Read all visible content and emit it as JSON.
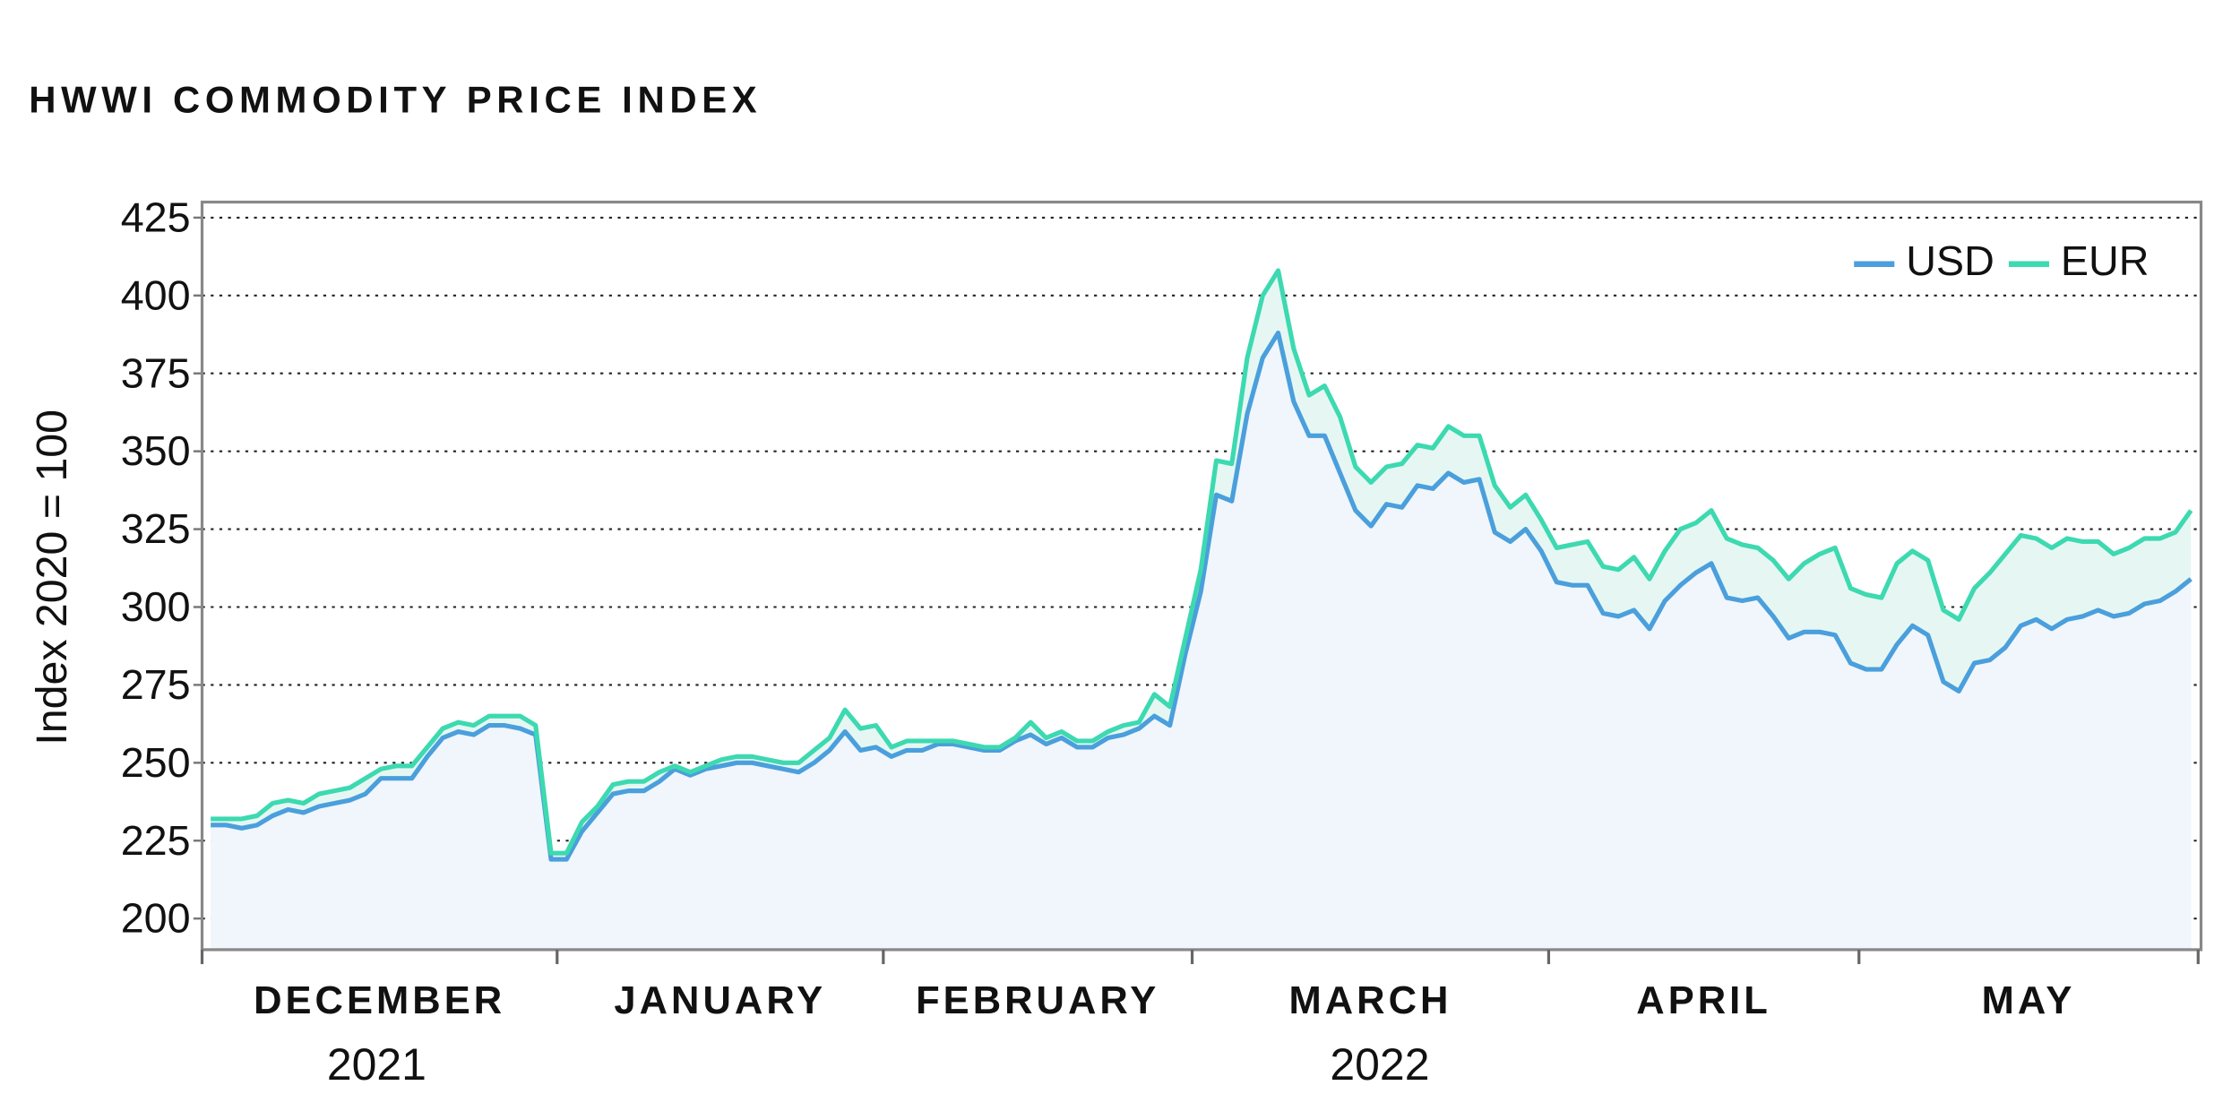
{
  "chart_data": {
    "type": "line",
    "title": "HWWI COMMODITY PRICE INDEX",
    "y_label": "Index 2020 = 100",
    "months": [
      "DECEMBER",
      "JANUARY",
      "FEBRUARY",
      "MARCH",
      "APRIL",
      "MAY"
    ],
    "years": [
      "2021",
      "2022"
    ],
    "ylim": [
      190,
      430
    ],
    "yticks": [
      200,
      225,
      250,
      275,
      300,
      325,
      350,
      375,
      400,
      425
    ],
    "grid": true,
    "legend": "upper right",
    "series": [
      {
        "name": "USD",
        "color": "#4a9fdc",
        "values": [
          230,
          230,
          229,
          230,
          233,
          235,
          234,
          236,
          237,
          238,
          240,
          245,
          245,
          245,
          252,
          258,
          260,
          259,
          262,
          262,
          261,
          259,
          219,
          219,
          228,
          234,
          240,
          241,
          241,
          244,
          248,
          246,
          248,
          249,
          250,
          250,
          249,
          248,
          247,
          250,
          254,
          260,
          254,
          255,
          252,
          254,
          254,
          256,
          256,
          255,
          254,
          254,
          257,
          259,
          256,
          258,
          255,
          255,
          258,
          259,
          261,
          265,
          262,
          285,
          305,
          336,
          334,
          362,
          380,
          388,
          366,
          355,
          355,
          343,
          331,
          326,
          333,
          332,
          339,
          338,
          343,
          340,
          341,
          324,
          321,
          325,
          318,
          308,
          307,
          307,
          298,
          297,
          299,
          293,
          302,
          307,
          311,
          314,
          303,
          302,
          303,
          297,
          290,
          292,
          292,
          291,
          282,
          280,
          280,
          288,
          294,
          291,
          276,
          273,
          282,
          283,
          287,
          294,
          296,
          293,
          296,
          297,
          299,
          297,
          298,
          301,
          302,
          305,
          309
        ]
      },
      {
        "name": "EUR",
        "color": "#3dd9b0",
        "values": [
          232,
          232,
          232,
          233,
          237,
          238,
          237,
          240,
          241,
          242,
          245,
          248,
          249,
          249,
          255,
          261,
          263,
          262,
          265,
          265,
          265,
          262,
          221,
          221,
          231,
          236,
          243,
          244,
          244,
          247,
          249,
          247,
          249,
          251,
          252,
          252,
          251,
          250,
          250,
          254,
          258,
          267,
          261,
          262,
          255,
          257,
          257,
          257,
          257,
          256,
          255,
          255,
          258,
          263,
          258,
          260,
          257,
          257,
          260,
          262,
          263,
          272,
          268,
          290,
          312,
          347,
          346,
          380,
          400,
          408,
          383,
          368,
          371,
          361,
          345,
          340,
          345,
          346,
          352,
          351,
          358,
          355,
          355,
          339,
          332,
          336,
          328,
          319,
          320,
          321,
          313,
          312,
          316,
          309,
          318,
          325,
          327,
          331,
          322,
          320,
          319,
          315,
          309,
          314,
          317,
          319,
          306,
          304,
          303,
          314,
          318,
          315,
          299,
          296,
          306,
          311,
          317,
          323,
          322,
          319,
          322,
          321,
          321,
          317,
          319,
          322,
          322,
          324,
          331
        ]
      }
    ]
  }
}
